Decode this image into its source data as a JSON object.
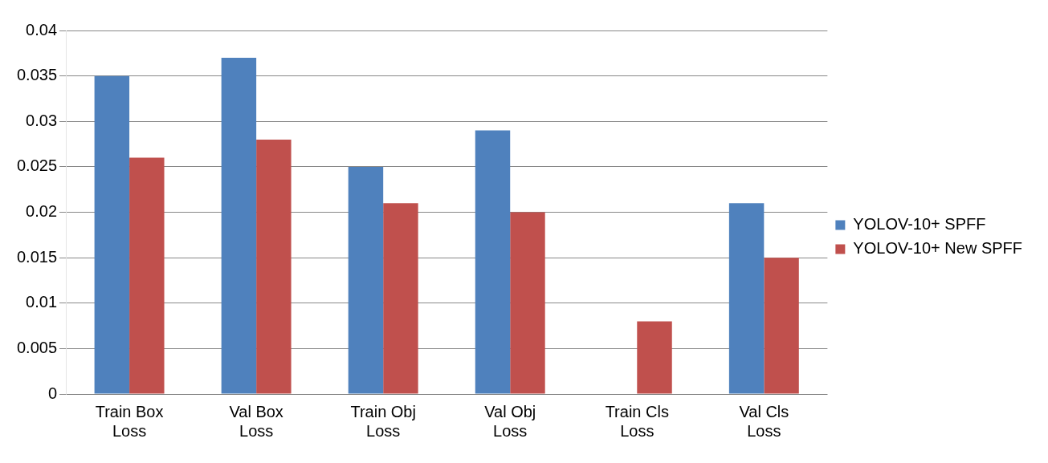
{
  "chart_data": {
    "type": "bar",
    "categories": [
      "Train Box Loss",
      "Val Box Loss",
      "Train Obj Loss",
      "Val Obj Loss",
      "Train Cls Loss",
      "Val Cls Loss"
    ],
    "series": [
      {
        "name": "YOLOV-10+ SPFF",
        "color": "#4f81bd",
        "values": [
          0.035,
          0.037,
          0.025,
          0.029,
          0,
          0.021
        ]
      },
      {
        "name": "YOLOV-10+ New SPFF",
        "color": "#c0504d",
        "values": [
          0.026,
          0.028,
          0.021,
          0.02,
          0.008,
          0.015
        ]
      }
    ],
    "ylim": [
      0,
      0.04
    ],
    "yticks": [
      0,
      0.005,
      0.01,
      0.015,
      0.02,
      0.025,
      0.03,
      0.035,
      0.04
    ],
    "grid": "y",
    "legend": "right"
  }
}
